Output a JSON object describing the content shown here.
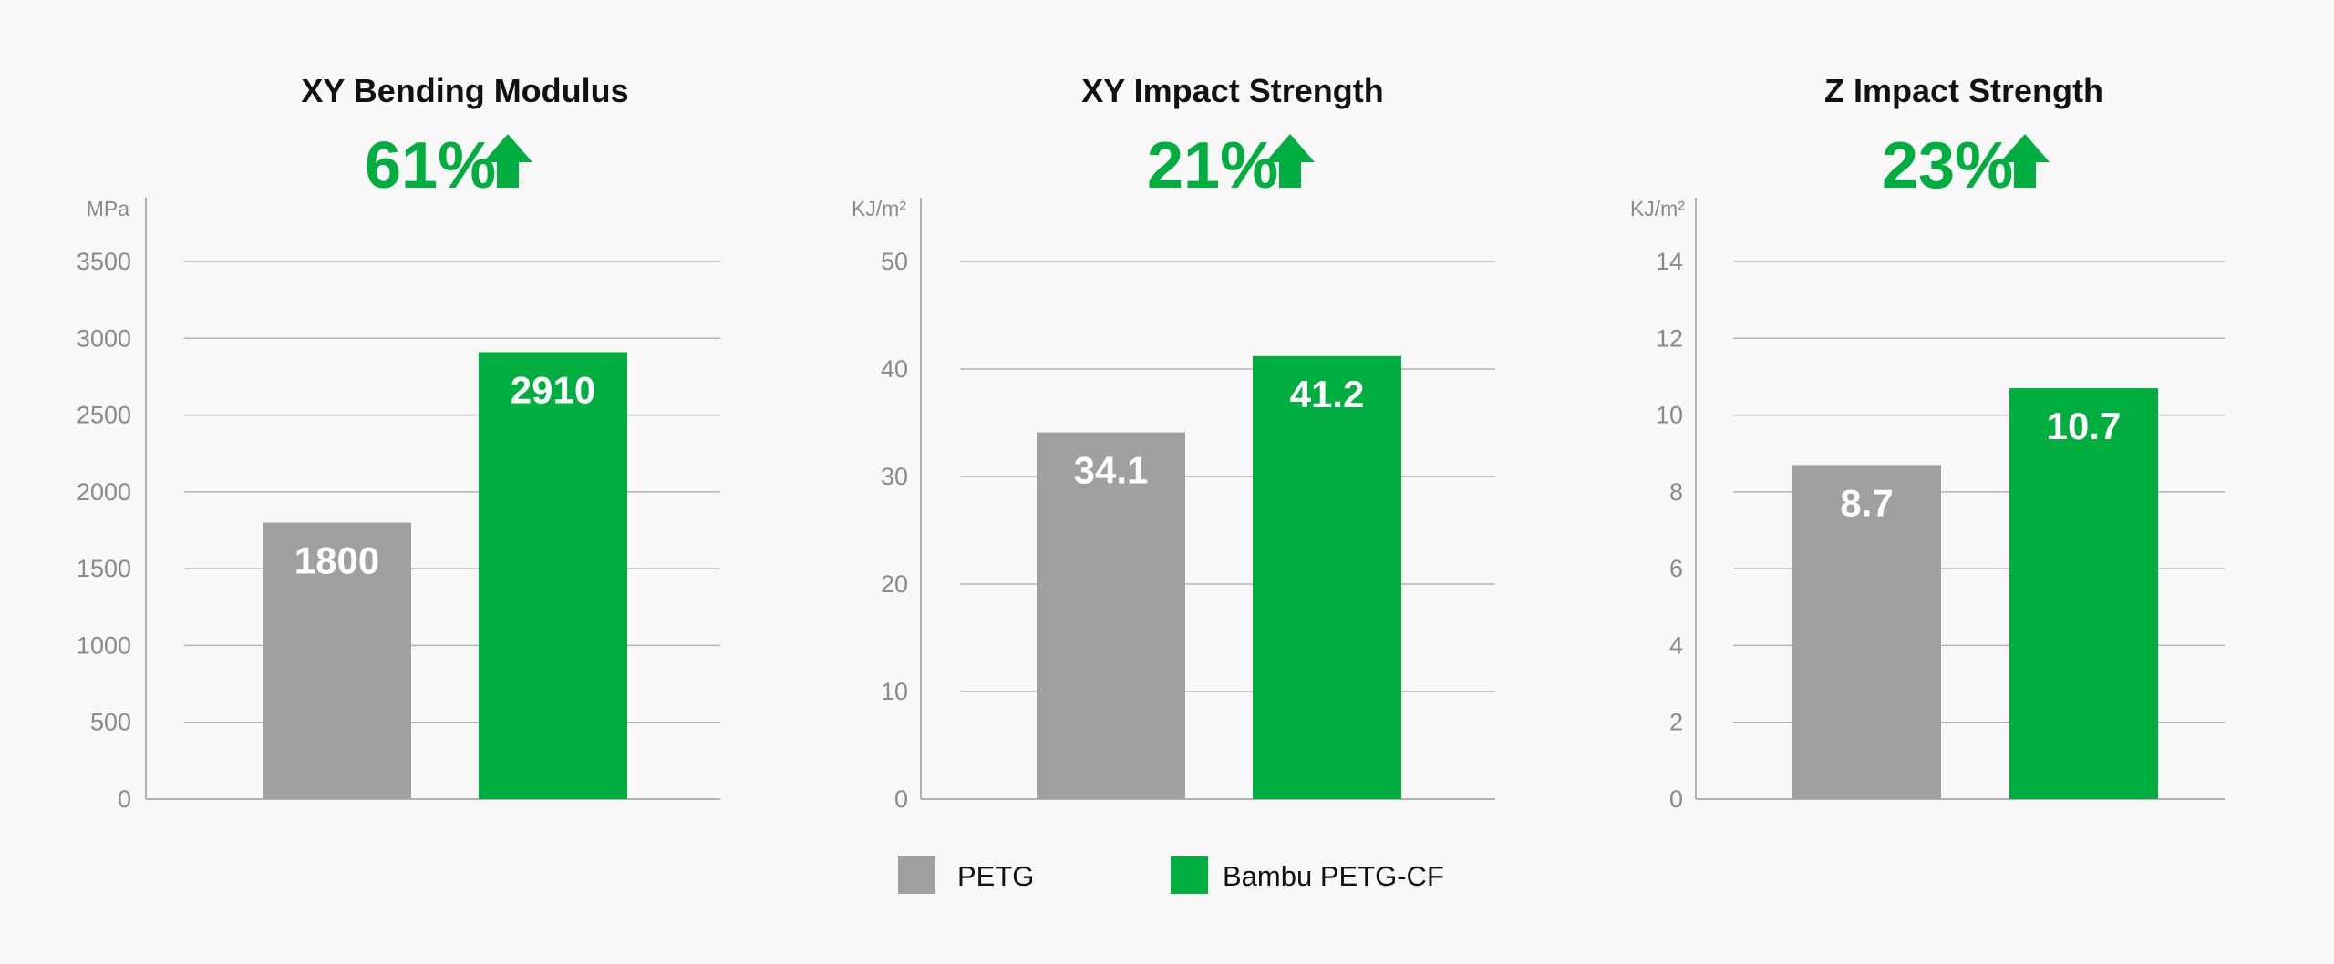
{
  "colors": {
    "petg": "#a0a0a0",
    "petg_cf": "#00ad3f",
    "grid": "#b4b4b4",
    "axis": "#9a9a9a"
  },
  "legend": [
    {
      "name": "PETG",
      "color": "#a0a0a0"
    },
    {
      "name": "Bambu PETG-CF",
      "color": "#00ad3f"
    }
  ],
  "chart_data": [
    {
      "type": "bar",
      "title": "XY Bending Modulus",
      "improvement": "61%",
      "improvement_icon": "up-arrow-icon",
      "ylabel": "MPa",
      "ylim": [
        0,
        3500
      ],
      "yticks": [
        0,
        500,
        1000,
        1500,
        2000,
        2500,
        3000,
        3500
      ],
      "grid": true,
      "series": [
        {
          "name": "PETG",
          "value": 1800,
          "label": "1800"
        },
        {
          "name": "Bambu PETG-CF",
          "value": 2910,
          "label": "2910"
        }
      ]
    },
    {
      "type": "bar",
      "title": "XY Impact Strength",
      "improvement": "21%",
      "improvement_icon": "up-arrow-icon",
      "ylabel": "KJ/m²",
      "ylim": [
        0,
        50
      ],
      "yticks": [
        0,
        10,
        20,
        30,
        40,
        50
      ],
      "grid": true,
      "series": [
        {
          "name": "PETG",
          "value": 34.1,
          "label": "34.1"
        },
        {
          "name": "Bambu PETG-CF",
          "value": 41.2,
          "label": "41.2"
        }
      ]
    },
    {
      "type": "bar",
      "title": "Z Impact Strength",
      "improvement": "23%",
      "improvement_icon": "up-arrow-icon",
      "ylabel": "KJ/m²",
      "ylim": [
        0,
        14
      ],
      "yticks": [
        0,
        2,
        4,
        6,
        8,
        10,
        12,
        14
      ],
      "grid": true,
      "series": [
        {
          "name": "PETG",
          "value": 8.7,
          "label": "8.7"
        },
        {
          "name": "Bambu PETG-CF",
          "value": 10.7,
          "label": "10.7"
        }
      ]
    }
  ]
}
